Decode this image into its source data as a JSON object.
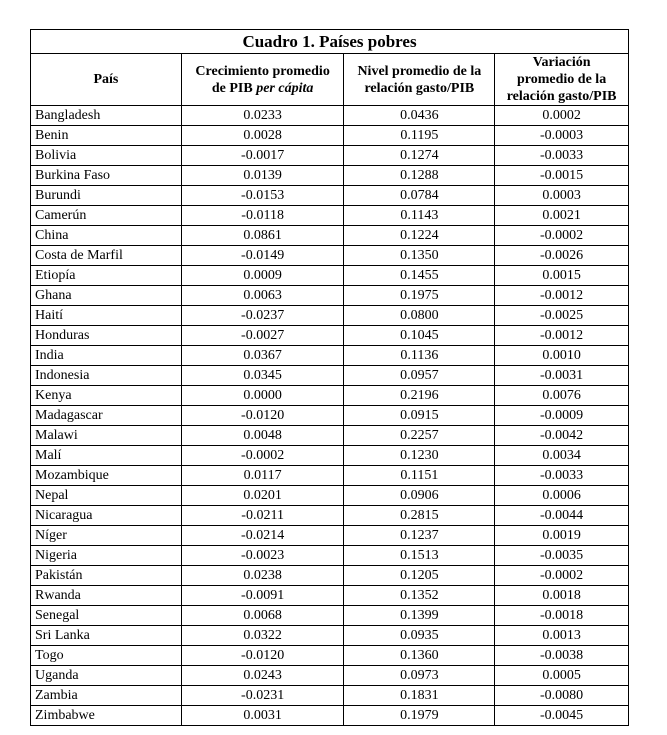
{
  "title": "Cuadro 1. Países pobres",
  "headers": {
    "country": "País",
    "growth_a": "Crecimiento promedio",
    "growth_b": "de PIB ",
    "growth_c": "per cápita",
    "level_a": "Nivel promedio de la",
    "level_b": "relación gasto/PIB",
    "var_a": "Variación",
    "var_b": "promedio de la",
    "var_c": "relación gasto/PIB"
  },
  "rows": [
    [
      "Bangladesh",
      "0.0233",
      "0.0436",
      "0.0002"
    ],
    [
      "Benin",
      "0.0028",
      "0.1195",
      "-0.0003"
    ],
    [
      "Bolivia",
      "-0.0017",
      "0.1274",
      "-0.0033"
    ],
    [
      "Burkina Faso",
      "0.0139",
      "0.1288",
      "-0.0015"
    ],
    [
      "Burundi",
      "-0.0153",
      "0.0784",
      "0.0003"
    ],
    [
      "Camerún",
      "-0.0118",
      "0.1143",
      "0.0021"
    ],
    [
      "China",
      "0.0861",
      "0.1224",
      "-0.0002"
    ],
    [
      "Costa de Marfil",
      "-0.0149",
      "0.1350",
      "-0.0026"
    ],
    [
      "Etiopía",
      "0.0009",
      "0.1455",
      "0.0015"
    ],
    [
      "Ghana",
      "0.0063",
      "0.1975",
      "-0.0012"
    ],
    [
      "Haití",
      "-0.0237",
      "0.0800",
      "-0.0025"
    ],
    [
      "Honduras",
      "-0.0027",
      "0.1045",
      "-0.0012"
    ],
    [
      "India",
      "0.0367",
      "0.1136",
      "0.0010"
    ],
    [
      "Indonesia",
      "0.0345",
      "0.0957",
      "-0.0031"
    ],
    [
      "Kenya",
      "0.0000",
      "0.2196",
      "0.0076"
    ],
    [
      "Madagascar",
      "-0.0120",
      "0.0915",
      "-0.0009"
    ],
    [
      "Malawi",
      "0.0048",
      "0.2257",
      "-0.0042"
    ],
    [
      "Malí",
      "-0.0002",
      "0.1230",
      "0.0034"
    ],
    [
      "Mozambique",
      "0.0117",
      "0.1151",
      "-0.0033"
    ],
    [
      "Nepal",
      "0.0201",
      "0.0906",
      "0.0006"
    ],
    [
      "Nicaragua",
      "-0.0211",
      "0.2815",
      "-0.0044"
    ],
    [
      "Níger",
      "-0.0214",
      "0.1237",
      "0.0019"
    ],
    [
      "Nigeria",
      "-0.0023",
      "0.1513",
      "-0.0035"
    ],
    [
      "Pakistán",
      "0.0238",
      "0.1205",
      "-0.0002"
    ],
    [
      "Rwanda",
      "-0.0091",
      "0.1352",
      "0.0018"
    ],
    [
      "Senegal",
      "0.0068",
      "0.1399",
      "-0.0018"
    ],
    [
      "Sri Lanka",
      "0.0322",
      "0.0935",
      "0.0013"
    ],
    [
      "Togo",
      "-0.0120",
      "0.1360",
      "-0.0038"
    ],
    [
      "Uganda",
      "0.0243",
      "0.0973",
      "0.0005"
    ],
    [
      "Zambia",
      "-0.0231",
      "0.1831",
      "-0.0080"
    ],
    [
      "Zimbabwe",
      "0.0031",
      "0.1979",
      "-0.0045"
    ]
  ]
}
